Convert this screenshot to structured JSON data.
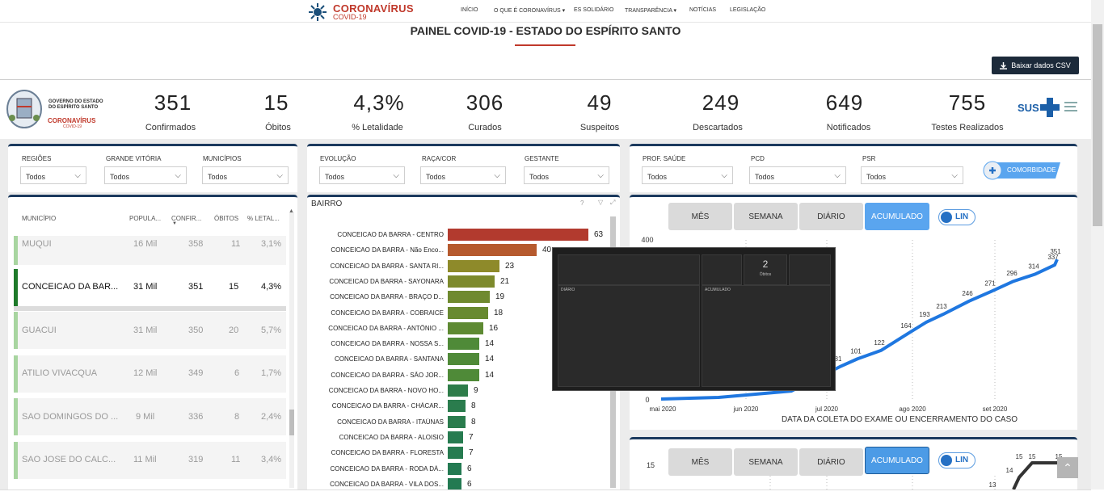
{
  "nav": {
    "brand_title": "CORONAVÍRUS",
    "brand_sub": "COVID-19",
    "items": [
      "INÍCIO",
      "O QUE É CORONAVÍRUS ▾",
      "ES SOLIDÁRIO",
      "TRANSPARÊNCIA ▾",
      "NOTÍCIAS",
      "LEGISLAÇÃO"
    ]
  },
  "page": {
    "title": "PAINEL COVID-19 - ESTADO DO ESPÍRITO SANTO",
    "csv_button": "Baixar dados CSV"
  },
  "gov": {
    "line1": "GOVERNO DO ESTADO",
    "line2": "DO ESPÍRITO SANTO",
    "corona": "CORONAVÍRUS",
    "corona_sub": "COVID-19",
    "sus": "SUS"
  },
  "kpis": [
    {
      "value": "351",
      "label": "Confirmados"
    },
    {
      "value": "15",
      "label": "Óbitos"
    },
    {
      "value": "4,3%",
      "label": "% Letalidade"
    },
    {
      "value": "306",
      "label": "Curados"
    },
    {
      "value": "49",
      "label": "Suspeitos"
    },
    {
      "value": "249",
      "label": "Descartados"
    },
    {
      "value": "649",
      "label": "Notificados"
    },
    {
      "value": "755",
      "label": "Testes Realizados"
    }
  ],
  "filters": {
    "p1": [
      {
        "label": "REGIÕES",
        "value": "Todos"
      },
      {
        "label": "GRANDE VITÓRIA",
        "value": "Todos"
      },
      {
        "label": "MUNICÍPIOS",
        "value": "Todos"
      }
    ],
    "p2": [
      {
        "label": "EVOLUÇÃO",
        "value": "Todos"
      },
      {
        "label": "RAÇA/COR",
        "value": "Todos"
      },
      {
        "label": "GESTANTE",
        "value": "Todos"
      }
    ],
    "p3": [
      {
        "label": "PROF. SAÚDE",
        "value": "Todos"
      },
      {
        "label": "PCD",
        "value": "Todos"
      },
      {
        "label": "PSR",
        "value": "Todos"
      }
    ],
    "comorbidade": "COMORBIDADE"
  },
  "table": {
    "headers": [
      "MUNICÍPIO",
      "POPULA...",
      "CONFIR...",
      "ÓBITOS",
      "% LETAL..."
    ],
    "rows": [
      {
        "name": "MUQUI",
        "pop": "16 Mil",
        "conf": "358",
        "obitos": "11",
        "letal": "3,1%"
      },
      {
        "name": "CONCEICAO DA BAR...",
        "pop": "31 Mil",
        "conf": "351",
        "obitos": "15",
        "letal": "4,3%"
      },
      {
        "name": "GUACUI",
        "pop": "31 Mil",
        "conf": "350",
        "obitos": "20",
        "letal": "5,7%"
      },
      {
        "name": "ATILIO VIVACQUA",
        "pop": "12 Mil",
        "conf": "349",
        "obitos": "6",
        "letal": "1,7%"
      },
      {
        "name": "SAO DOMINGOS DO ...",
        "pop": "9 Mil",
        "conf": "336",
        "obitos": "8",
        "letal": "2,4%"
      },
      {
        "name": "SAO JOSE DO CALC...",
        "pop": "11 Mil",
        "conf": "319",
        "obitos": "11",
        "letal": "3,4%"
      }
    ]
  },
  "bairro": {
    "title": "BAIRRO",
    "items": [
      {
        "label": "CONCEICAO DA BARRA - CENTRO",
        "value": 63,
        "color": "#b23a2e"
      },
      {
        "label": "CONCEICAO DA BARRA - Não Enco...",
        "value": 40,
        "color": "#b65a2e"
      },
      {
        "label": "CONCEICAO DA BARRA - SANTA RI...",
        "value": 23,
        "color": "#8e8a2a"
      },
      {
        "label": "CONCEICAO DA BARRA - SAYONARA",
        "value": 21,
        "color": "#7d8a2c"
      },
      {
        "label": "CONCEICAO DA BARRA - BRAÇO D...",
        "value": 19,
        "color": "#6f8a2f"
      },
      {
        "label": "CONCEICAO DA BARRA - COBRAICE",
        "value": 18,
        "color": "#688a30"
      },
      {
        "label": "CONCEICAO DA BARRA - ANTÔNIO ...",
        "value": 16,
        "color": "#5e8a33"
      },
      {
        "label": "CONCEICAO DA BARRA - NOSSA S...",
        "value": 14,
        "color": "#4f8a38"
      },
      {
        "label": "CONCEICAO DA BARRA - SANTANA",
        "value": 14,
        "color": "#4f8a38"
      },
      {
        "label": "CONCEICAO DA BARRA - SÃO JOR...",
        "value": 14,
        "color": "#4f8a38"
      },
      {
        "label": "CONCEICAO DA BARRA - NOVO HO...",
        "value": 9,
        "color": "#2e7d4a"
      },
      {
        "label": "CONCEICAO DA BARRA - CHÁCAR...",
        "value": 8,
        "color": "#2a7c4d"
      },
      {
        "label": "CONCEICAO DA BARRA - ITAÚNAS",
        "value": 8,
        "color": "#2a7c4d"
      },
      {
        "label": "CONCEICAO DA BARRA - ALOISIO",
        "value": 7,
        "color": "#267b50"
      },
      {
        "label": "CONCEICAO DA BARRA - FLORESTA",
        "value": 7,
        "color": "#267b50"
      },
      {
        "label": "CONCEICAO DA BARRA - RODA DÁ...",
        "value": 6,
        "color": "#237a52"
      },
      {
        "label": "CONCEICAO DA BARRA - VILA DOS...",
        "value": 6,
        "color": "#237a52"
      }
    ]
  },
  "period_buttons": [
    "MÊS",
    "SEMANA",
    "DIÁRIO",
    "ACUMULADO"
  ],
  "lin_toggle": "LIN",
  "tooltip": {
    "value": "2",
    "sub": "Óbitos",
    "left": "DIÁRIO",
    "right": "ACUMULADO"
  },
  "chart_data": [
    {
      "type": "line",
      "x": [
        "mai 2020",
        "jun 2020",
        "jul 2020",
        "ago 2020",
        "set 2020"
      ],
      "points": [
        {
          "x": "jul 2020",
          "y": 81
        },
        {
          "x": "jul 2020",
          "y": 101
        },
        {
          "x": "jul 2020",
          "y": 122
        },
        {
          "x": "ago 2020",
          "y": 164
        },
        {
          "x": "ago 2020",
          "y": 193
        },
        {
          "x": "ago 2020",
          "y": 213
        },
        {
          "x": "ago 2020",
          "y": 246
        },
        {
          "x": "ago 2020",
          "y": 271
        },
        {
          "x": "set 2020",
          "y": 296
        },
        {
          "x": "set 2020",
          "y": 314
        },
        {
          "x": "set 2020",
          "y": 337
        },
        {
          "x": "set 2020",
          "y": 351
        }
      ],
      "value_labels": [
        "81",
        "101",
        "122",
        "164",
        "193",
        "213",
        "246",
        "271",
        "296",
        "314",
        "337",
        "351"
      ],
      "xticks": [
        "mai 2020",
        "jun 2020",
        "jul 2020",
        "ago 2020",
        "set 2020"
      ],
      "yticks": [
        "0",
        "400"
      ],
      "xlabel": "DATA DA COLETA DO EXAME OU ENCERRAMENTO DO CASO",
      "ylim": [
        0,
        400
      ],
      "color": "#1f77e0"
    },
    {
      "type": "line",
      "values": [
        13,
        14,
        15,
        15,
        15
      ],
      "value_labels": [
        "13",
        "14",
        "15",
        "15",
        "15"
      ],
      "yticks": [
        "15"
      ],
      "color": "#333333"
    }
  ]
}
